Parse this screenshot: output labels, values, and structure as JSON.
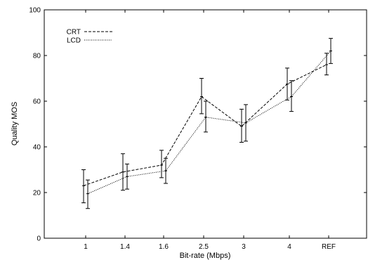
{
  "chart_data": {
    "type": "line",
    "title": "",
    "xlabel": "Bit-rate (Mbps)",
    "ylabel": "Quality MOS",
    "categories": [
      "1",
      "1.4",
      "1.6",
      "2.5",
      "3",
      "4",
      "REF"
    ],
    "ylim": [
      0,
      100
    ],
    "yticks": [
      0,
      20,
      40,
      60,
      80,
      100
    ],
    "grid": false,
    "legend_position": "top-left",
    "series": [
      {
        "name": "CRT",
        "line_style": "dashed",
        "values": [
          23,
          29,
          32,
          62,
          49,
          67.5,
          76
        ],
        "error_low": [
          15.5,
          21,
          26.5,
          54.5,
          42,
          60.5,
          71.5
        ],
        "error_high": [
          30,
          37,
          38.5,
          70,
          56.5,
          74.5,
          81
        ]
      },
      {
        "name": "LCD",
        "line_style": "dotted",
        "values": [
          19.5,
          27,
          29.5,
          53,
          50.5,
          62,
          82
        ],
        "error_low": [
          13,
          21.5,
          24,
          46.5,
          42.5,
          55.5,
          76.5
        ],
        "error_high": [
          25.5,
          32.5,
          35,
          60,
          58.5,
          69,
          87.5
        ]
      }
    ]
  }
}
